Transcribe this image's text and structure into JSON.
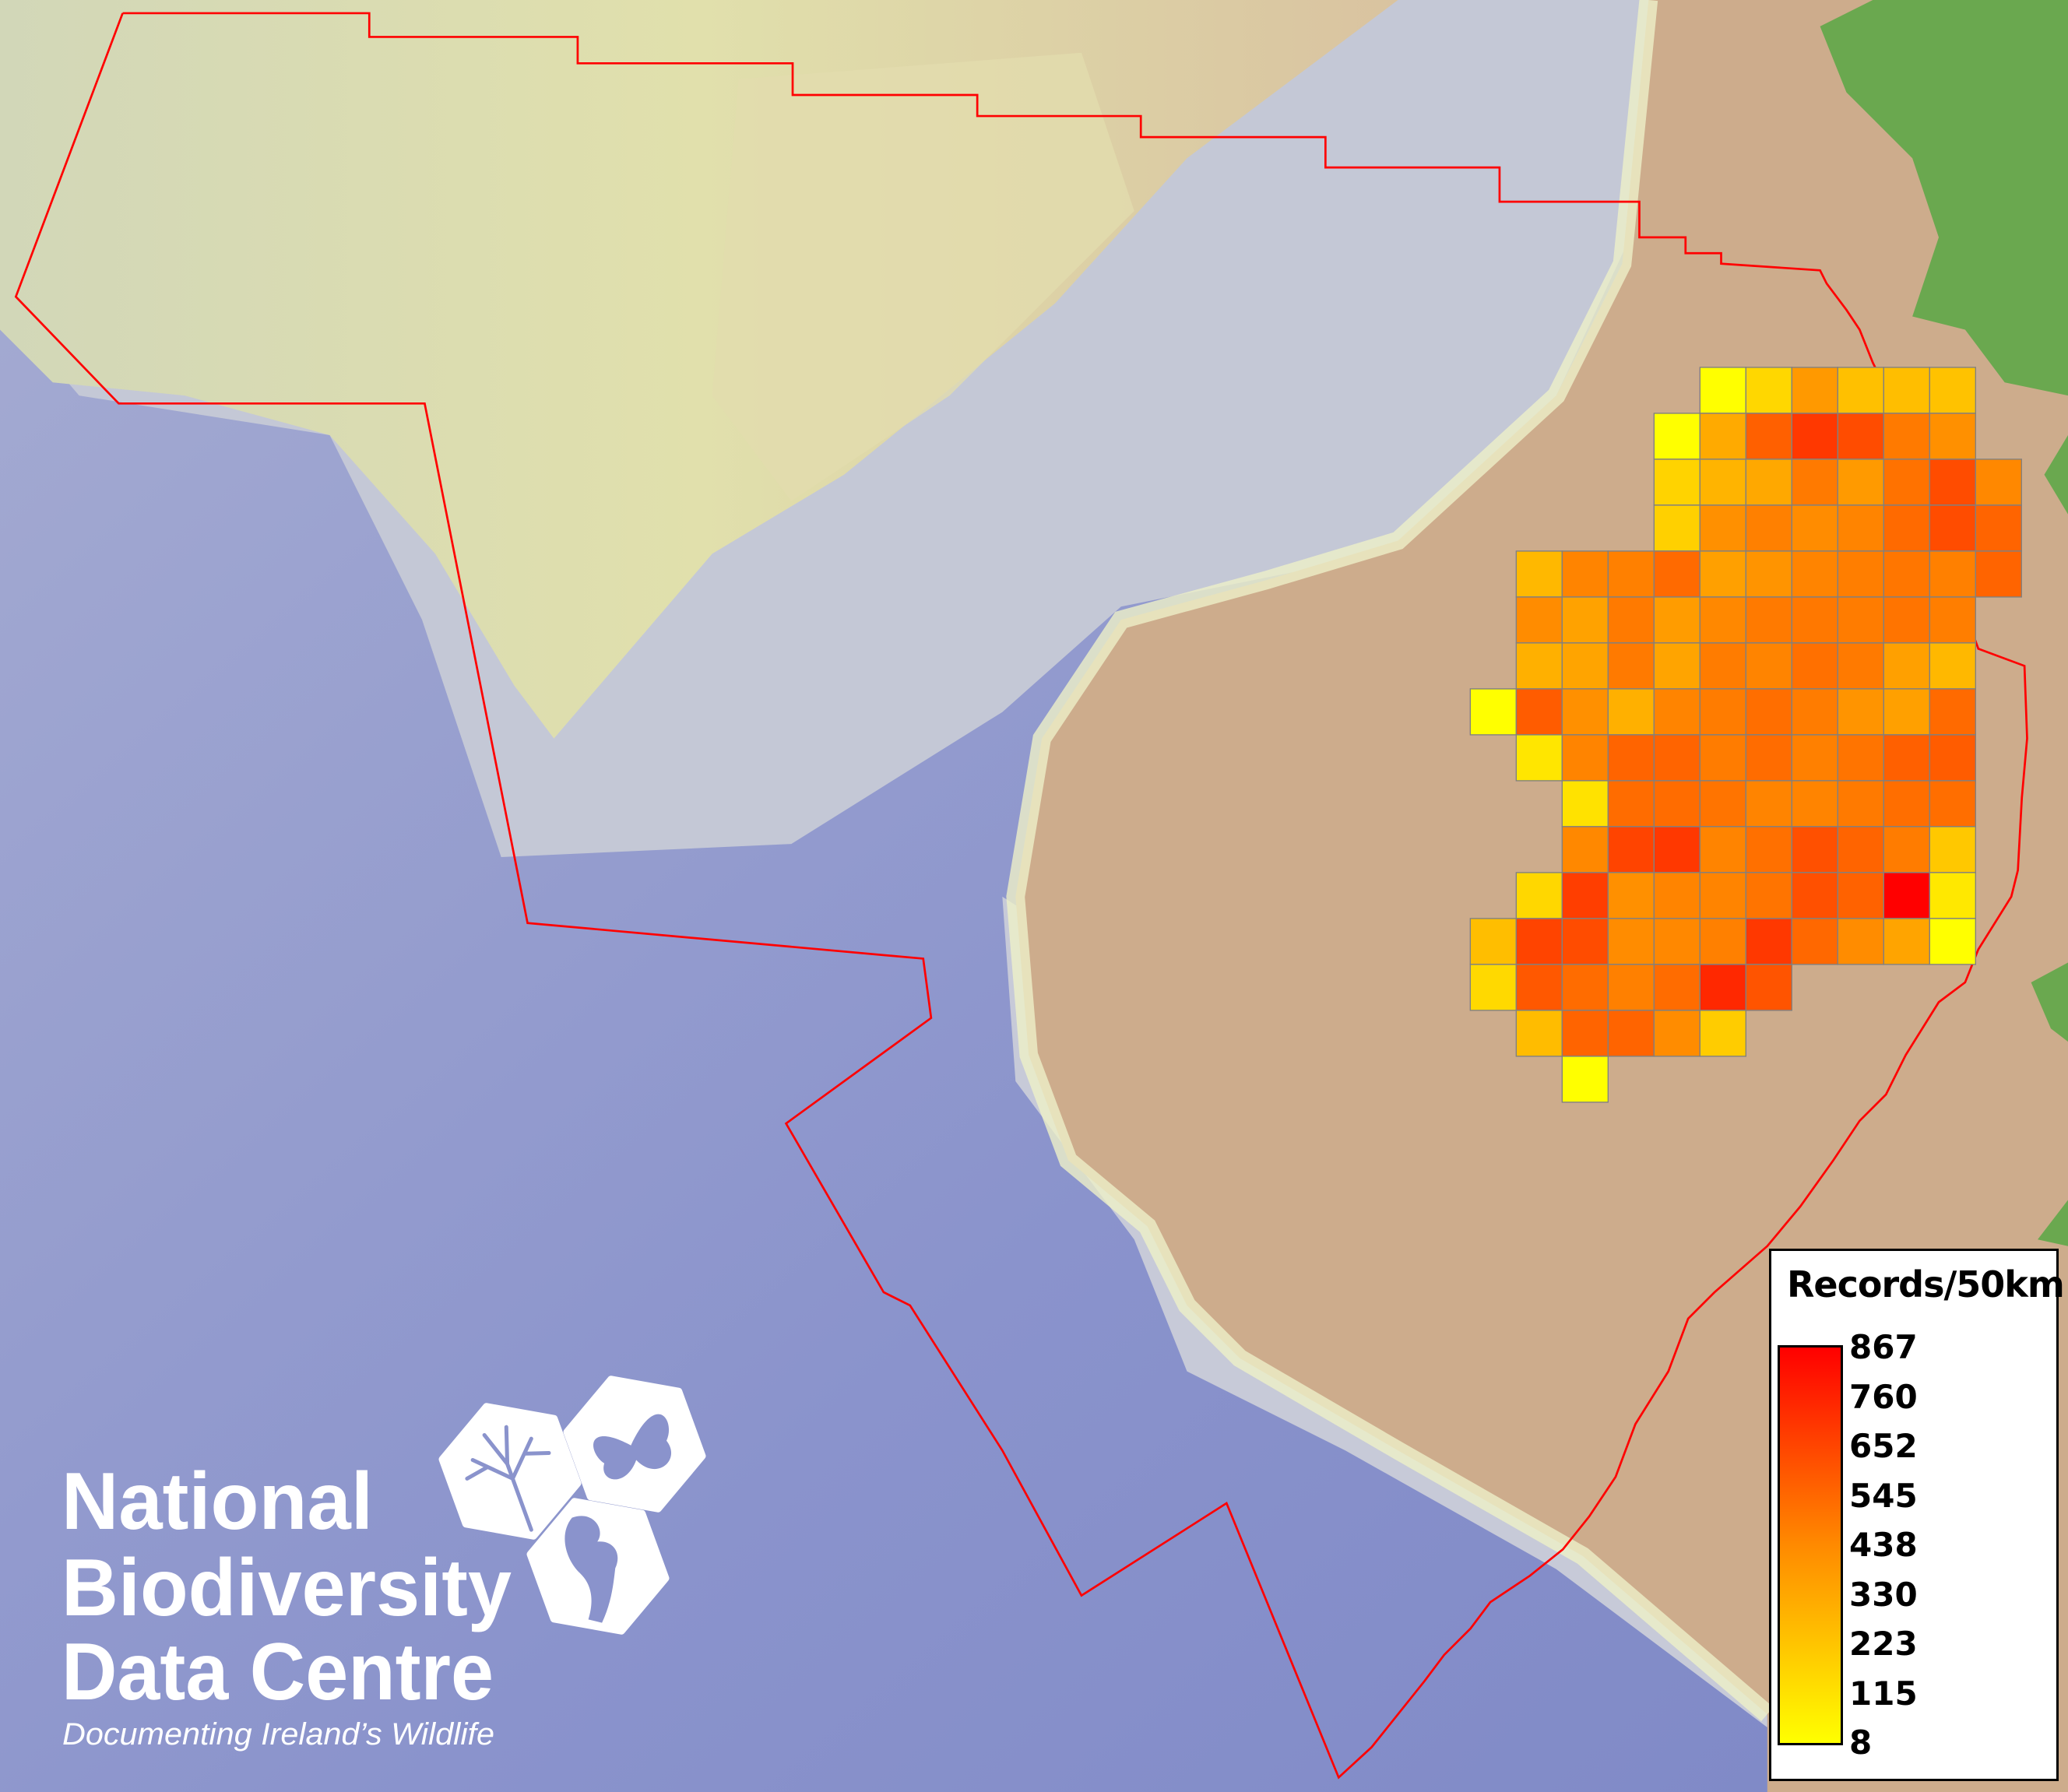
{
  "map": {
    "colors": {
      "deep_sea": "#8089c6",
      "shelf": "#c9ccd6",
      "upper_shelf": "#dcdfb0",
      "land": "#cdac8c",
      "highland": "#6aa84f",
      "boundary": "#ff0000",
      "grid_line": "#808080"
    },
    "grid_values": [
      [
        null,
        null,
        null,
        null,
        null,
        8,
        143,
        352,
        220,
        227,
        213,
        null
      ],
      [
        null,
        null,
        null,
        null,
        8,
        294,
        544,
        678,
        611,
        456,
        382,
        null
      ],
      [
        null,
        null,
        null,
        null,
        156,
        261,
        301,
        456,
        348,
        483,
        611,
        409
      ],
      [
        null,
        null,
        null,
        null,
        166,
        382,
        436,
        395,
        422,
        510,
        611,
        530
      ],
      [
        null,
        247,
        422,
        436,
        510,
        328,
        368,
        422,
        443,
        470,
        436,
        530
      ],
      [
        null,
        395,
        321,
        456,
        342,
        409,
        456,
        463,
        449,
        476,
        443,
        null
      ],
      [
        null,
        274,
        315,
        456,
        315,
        449,
        422,
        490,
        456,
        328,
        247,
        null
      ],
      [
        8,
        557,
        382,
        274,
        422,
        449,
        496,
        449,
        368,
        328,
        510,
        null
      ],
      [
        null,
        92,
        422,
        530,
        530,
        449,
        503,
        436,
        476,
        544,
        557,
        null
      ],
      [
        null,
        null,
        106,
        503,
        503,
        476,
        422,
        422,
        456,
        496,
        496,
        null
      ],
      [
        null,
        null,
        409,
        638,
        678,
        422,
        490,
        597,
        530,
        449,
        193,
        null
      ],
      [
        null,
        143,
        658,
        382,
        422,
        422,
        476,
        597,
        537,
        867,
        85,
        null
      ],
      [
        227,
        638,
        611,
        395,
        409,
        436,
        678,
        517,
        395,
        315,
        8,
        null
      ],
      [
        136,
        571,
        503,
        436,
        503,
        732,
        584,
        null,
        null,
        null,
        null,
        null
      ],
      [
        null,
        234,
        530,
        530,
        395,
        180,
        null,
        null,
        null,
        null,
        null,
        null
      ],
      [
        null,
        null,
        8,
        null,
        null,
        null,
        null,
        null,
        null,
        null,
        null,
        null
      ]
    ]
  },
  "legend": {
    "title": "Records/50km",
    "min": 8,
    "max": 867,
    "color_low": "#ffff00",
    "color_high": "#ff0000",
    "ticks": [
      "867",
      "760",
      "652",
      "545",
      "438",
      "330",
      "223",
      "115",
      "8"
    ]
  },
  "logo": {
    "line1": "National",
    "line2": "Biodiversity",
    "line3": "Data Centre",
    "tagline": "Documenting Ireland’s Wildlife"
  }
}
